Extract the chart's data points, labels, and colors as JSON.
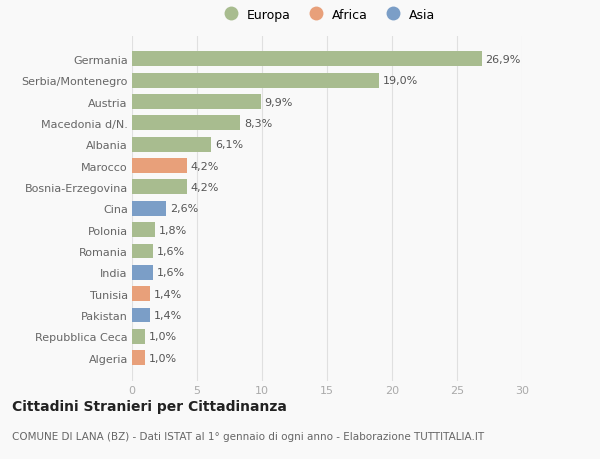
{
  "categories": [
    "Algeria",
    "Repubblica Ceca",
    "Pakistan",
    "Tunisia",
    "India",
    "Romania",
    "Polonia",
    "Cina",
    "Bosnia-Erzegovina",
    "Marocco",
    "Albania",
    "Macedonia d/N.",
    "Austria",
    "Serbia/Montenegro",
    "Germania"
  ],
  "values": [
    1.0,
    1.0,
    1.4,
    1.4,
    1.6,
    1.6,
    1.8,
    2.6,
    4.2,
    4.2,
    6.1,
    8.3,
    9.9,
    19.0,
    26.9
  ],
  "labels": [
    "1,0%",
    "1,0%",
    "1,4%",
    "1,4%",
    "1,6%",
    "1,6%",
    "1,8%",
    "2,6%",
    "4,2%",
    "4,2%",
    "6,1%",
    "8,3%",
    "9,9%",
    "19,0%",
    "26,9%"
  ],
  "continents": [
    "Africa",
    "Europa",
    "Asia",
    "Africa",
    "Asia",
    "Europa",
    "Europa",
    "Asia",
    "Europa",
    "Africa",
    "Europa",
    "Europa",
    "Europa",
    "Europa",
    "Europa"
  ],
  "colors": {
    "Europa": "#a8bc8f",
    "Africa": "#e8a07a",
    "Asia": "#7b9ec7"
  },
  "title": "Cittadini Stranieri per Cittadinanza",
  "subtitle": "COMUNE DI LANA (BZ) - Dati ISTAT al 1° gennaio di ogni anno - Elaborazione TUTTITALIA.IT",
  "xlim": [
    0,
    30
  ],
  "xticks": [
    0,
    5,
    10,
    15,
    20,
    25,
    30
  ],
  "background_color": "#f9f9f9",
  "bar_height": 0.7,
  "label_fontsize": 8,
  "tick_label_fontsize": 8,
  "title_fontsize": 10,
  "subtitle_fontsize": 7.5,
  "grid_color": "#e0e0e0",
  "ytick_color": "#666666",
  "xtick_color": "#aaaaaa"
}
